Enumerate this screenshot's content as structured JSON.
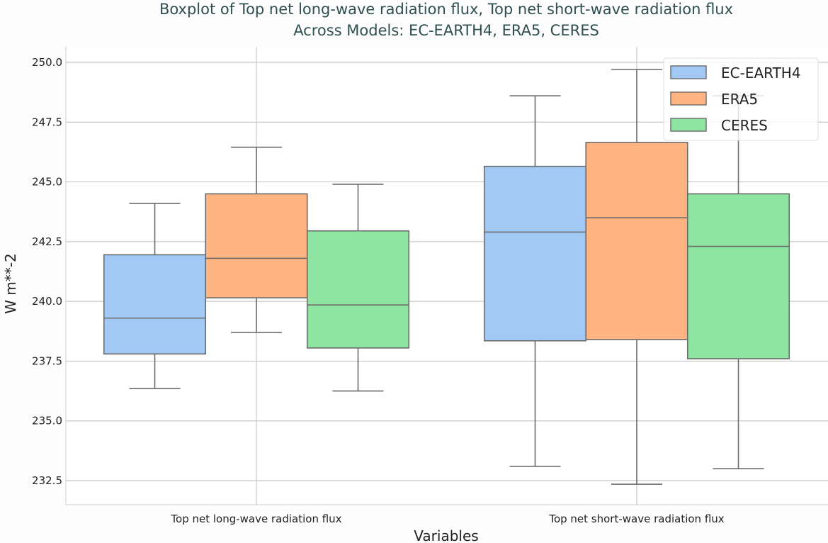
{
  "chart_data": {
    "type": "boxplot",
    "title": "Boxplot of Top net long-wave radiation flux, Top net short-wave radiation flux\nAcross Models: EC-EARTH4, ERA5, CERES",
    "title_lines": [
      "Boxplot of Top net long-wave radiation flux, Top net short-wave radiation flux",
      "Across Models: EC-EARTH4, ERA5, CERES"
    ],
    "xlabel": "Variables",
    "ylabel": "W m**-2",
    "ylim": [
      231.9,
      251.2
    ],
    "yticks": [
      "232.5",
      "235.0",
      "237.5",
      "240.0",
      "242.5",
      "245.0",
      "247.5",
      "250.0"
    ],
    "grid": true,
    "legend_position": "top-right",
    "categories": [
      "Top net long-wave radiation flux",
      "Top net short-wave radiation flux"
    ],
    "series": [
      {
        "name": "EC-EARTH4",
        "color": "#a1c9f4",
        "boxes": [
          {
            "whislo": 236.35,
            "q1": 237.8,
            "med": 239.3,
            "q3": 241.95,
            "whishi": 244.1
          },
          {
            "whislo": 233.1,
            "q1": 238.35,
            "med": 242.9,
            "q3": 245.65,
            "whishi": 248.6
          }
        ]
      },
      {
        "name": "ERA5",
        "color": "#ffb482",
        "boxes": [
          {
            "whislo": 238.7,
            "q1": 240.15,
            "med": 241.8,
            "q3": 244.5,
            "whishi": 246.45
          },
          {
            "whislo": 232.35,
            "q1": 238.4,
            "med": 243.5,
            "q3": 246.65,
            "whishi": 249.7
          }
        ]
      },
      {
        "name": "CERES",
        "color": "#8de5a1",
        "boxes": [
          {
            "whislo": 236.25,
            "q1": 238.05,
            "med": 239.85,
            "q3": 242.95,
            "whishi": 244.9
          },
          {
            "whislo": 233.0,
            "q1": 237.6,
            "med": 242.3,
            "q3": 244.5,
            "whishi": 248.6
          }
        ]
      }
    ]
  }
}
